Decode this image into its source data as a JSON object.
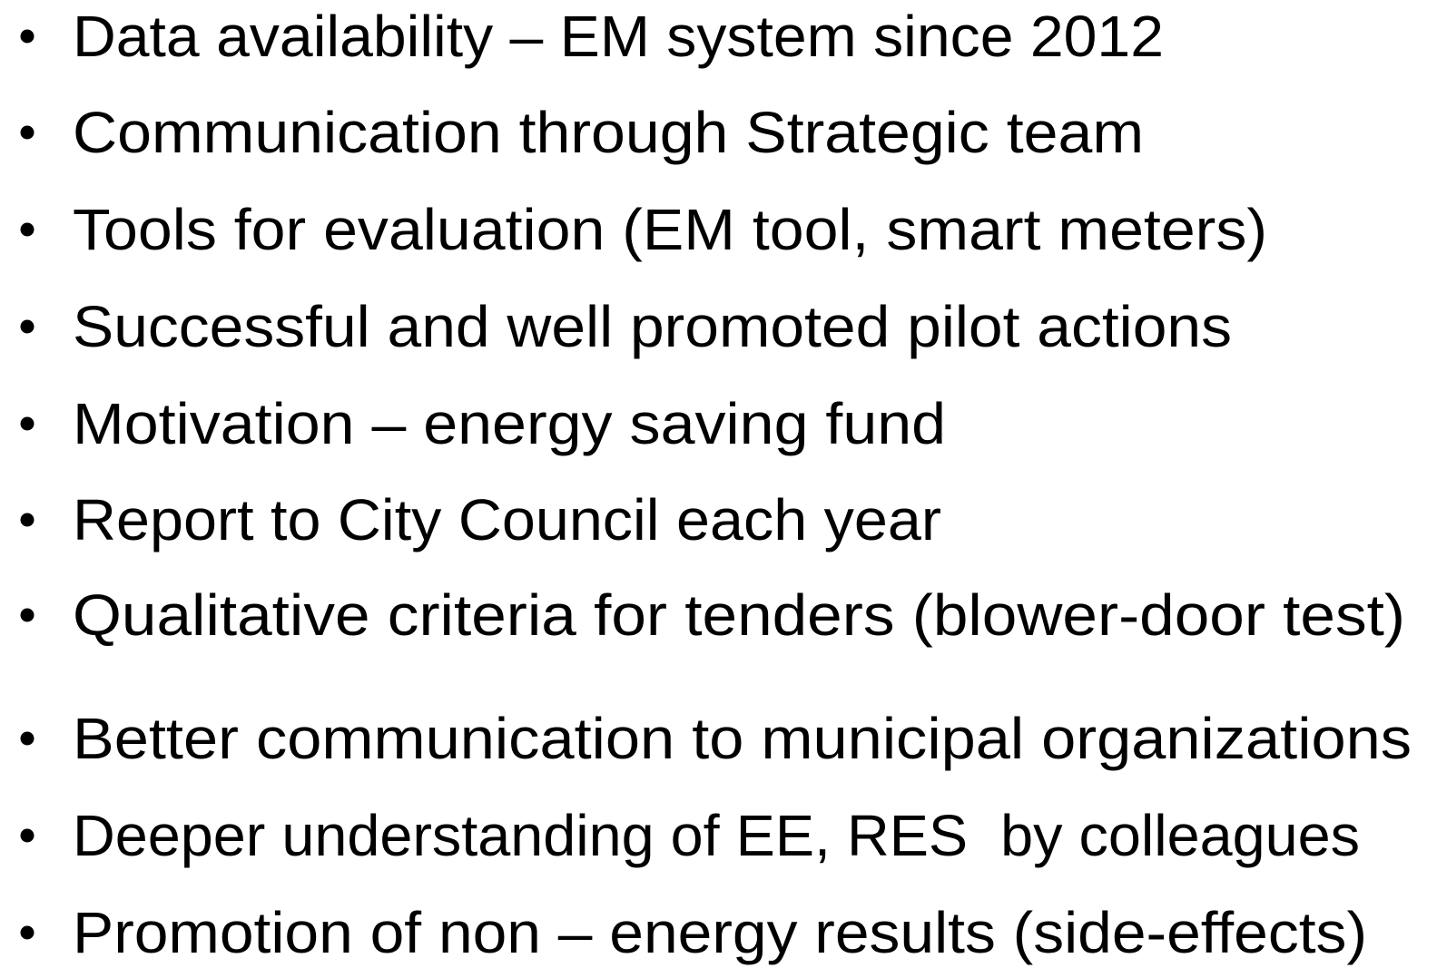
{
  "lists": [
    {
      "items": [
        "Data availability – EM system since 2012",
        "Communication through Strategic team",
        "Tools for evaluation (EM tool, smart meters)",
        "Successful and well promoted pilot actions",
        "Motivation – energy saving fund",
        "Report to City Council each year",
        "Qualitative criteria for tenders (blower-door test)"
      ]
    },
    {
      "items": [
        "Better communication to municipal organizations",
        "Deeper understanding of EE, RES  by colleagues",
        "Promotion of non – energy results (side-effects)"
      ]
    }
  ]
}
